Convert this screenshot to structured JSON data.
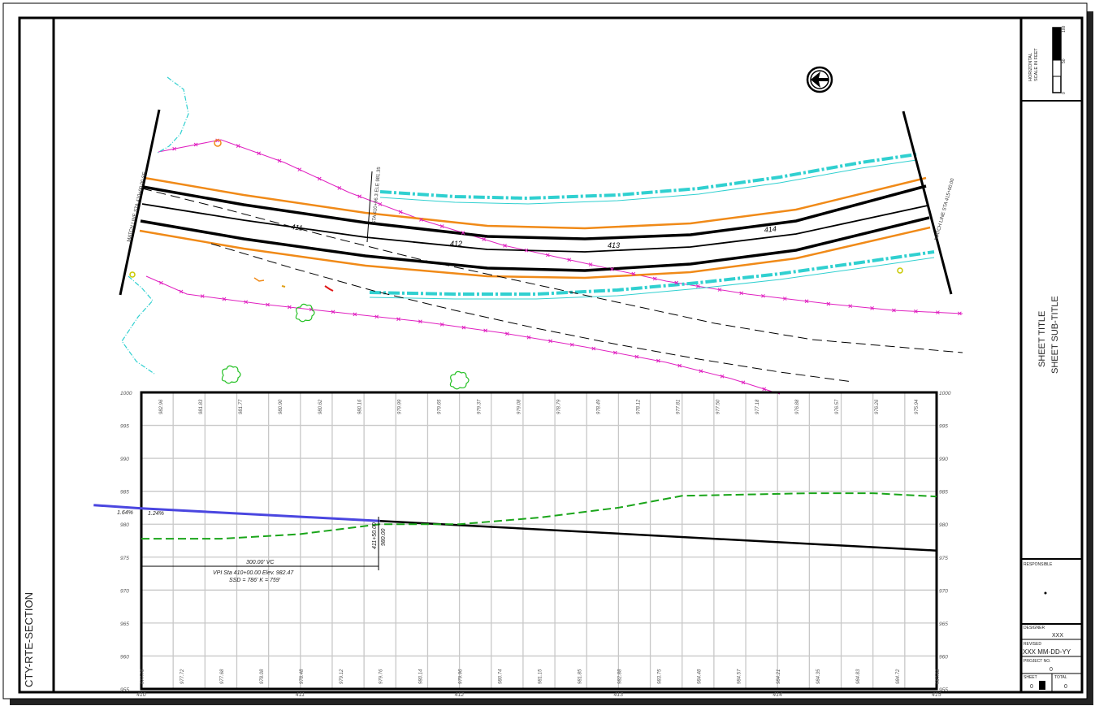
{
  "sheet": {
    "title": "SHEET TITLE",
    "subtitle": "SHEET SUB-TITLE",
    "left_label": "CTY-RTE-SECTION",
    "scale_label": "HORIZONTAL\nSCALE IN FEET",
    "scale_ticks": [
      "0",
      "50",
      "100"
    ],
    "designer_label": "DESIGNER",
    "designer_value": "XXX",
    "revision_label": "REVISED",
    "revision_value": "XXX MM-DD-YY",
    "project_label": "PROJECT NO.",
    "project_value": "0",
    "sheet_label": "SHEET",
    "total_label": "TOTAL",
    "sheet_value": "0",
    "total_value": "0",
    "seal_label": "RESPONSIBLE"
  },
  "plan": {
    "stations": [
      "411",
      "412",
      "413",
      "414"
    ],
    "match_left": "MATCH LINE STA 410+00.00 SE",
    "match_right": "MATCH LINE STA 415+00.00",
    "callout": "STA 410+96.3 ELE 981.35"
  },
  "profile": {
    "elev_ticks": [
      "1000",
      "995",
      "990",
      "985",
      "980",
      "975",
      "970",
      "965",
      "960",
      "955"
    ],
    "station_ticks": [
      "410",
      "411",
      "412",
      "413",
      "414",
      "415"
    ],
    "top_values": [
      "982.96",
      "981.83",
      "981.77",
      "980.90",
      "980.62",
      "980.16",
      "979.99",
      "979.65",
      "979.37",
      "979.08",
      "978.79",
      "978.49",
      "978.12",
      "977.81",
      "977.50",
      "977.18",
      "976.88",
      "976.57",
      "976.26",
      "975.94"
    ],
    "bottom_values": [
      "977.76",
      "977.72",
      "977.68",
      "978.08",
      "978.48",
      "979.12",
      "979.76",
      "980.14",
      "979.96",
      "980.74",
      "981.15",
      "981.85",
      "982.88",
      "983.75",
      "984.48",
      "984.57",
      "984.21",
      "984.35",
      "984.83",
      "984.72",
      "984.63"
    ],
    "grade_left": "1.64%",
    "grade_right": "1.24%",
    "vpi_line1": "300.00' VC",
    "vpi_line2": "VPI Sta 410+00.00  Elev. 982.47",
    "vpi_line3": "SSD = 786'     K = 759'",
    "pvt_label": "411+50.00",
    "pvt_elev": "980.00",
    "colors": {
      "ground": "#1aa51a",
      "existing_grade": "#4a46e0",
      "proposed_grade": "#000000",
      "grid": "#c8c8c8"
    }
  },
  "chart_data": {
    "type": "line",
    "title": "",
    "xlabel": "",
    "ylabel": "",
    "xlim": [
      410,
      415
    ],
    "ylim": [
      955,
      1000
    ],
    "grid": true,
    "series": [
      {
        "name": "",
        "x": [
          409.7,
          410.0,
          411.5
        ],
        "values": [
          982.9,
          982.4,
          980.5
        ]
      },
      {
        "name": "",
        "x": [
          411.5,
          415.0
        ],
        "values": [
          980.5,
          976.0
        ]
      },
      {
        "name": "",
        "x": [
          410.0,
          410.5,
          411.0,
          411.5,
          412.0,
          412.5,
          413.0,
          413.4,
          413.8,
          414.2,
          414.6,
          415.0
        ],
        "values": [
          977.8,
          977.8,
          978.5,
          980.0,
          980.0,
          981.0,
          982.5,
          984.3,
          984.5,
          984.7,
          984.7,
          984.2
        ]
      }
    ]
  }
}
